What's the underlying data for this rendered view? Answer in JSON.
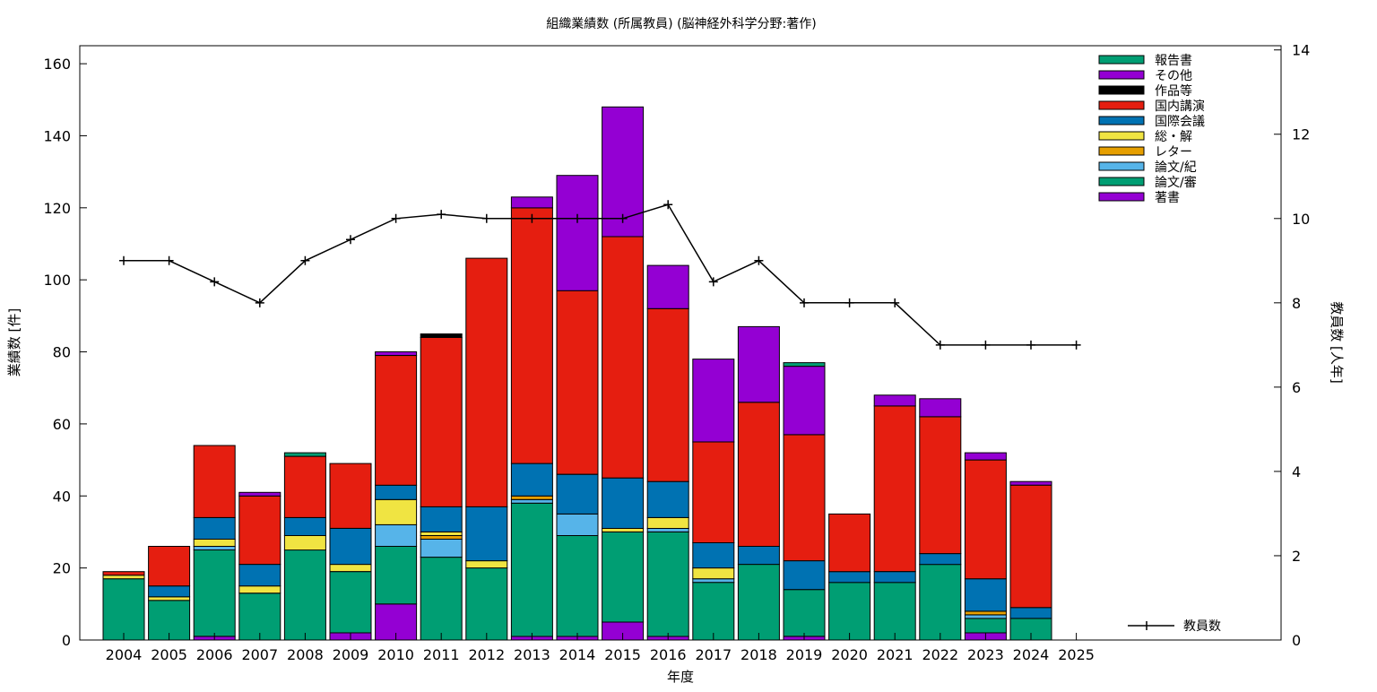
{
  "chart_data": {
    "type": "bar",
    "stacked": true,
    "title": "組織業績数 (所属教員) (脳神経外科学分野:著作)",
    "xlabel": "年度",
    "ylabel": "業績数 [件]",
    "y2label": "教員数 [人年]",
    "ylim": [
      0,
      165
    ],
    "y2lim": [
      0,
      14.1
    ],
    "yticks": [
      0,
      20,
      40,
      60,
      80,
      100,
      120,
      140,
      160
    ],
    "y2ticks": [
      0,
      2,
      4,
      6,
      8,
      10,
      12,
      14
    ],
    "grid": false,
    "legend_position": "top-right",
    "categories": [
      "2004",
      "2005",
      "2006",
      "2007",
      "2008",
      "2009",
      "2010",
      "2011",
      "2012",
      "2013",
      "2014",
      "2015",
      "2016",
      "2017",
      "2018",
      "2019",
      "2020",
      "2021",
      "2022",
      "2023",
      "2024",
      "2025"
    ],
    "series": [
      {
        "name": "著書",
        "color": "#9400d3",
        "values": [
          0,
          0,
          1,
          0,
          0,
          2,
          10,
          0,
          0,
          1,
          1,
          5,
          1,
          0,
          0,
          1,
          0,
          0,
          0,
          2,
          0,
          0
        ]
      },
      {
        "name": "論文/審",
        "color": "#009e73",
        "values": [
          17,
          11,
          24,
          13,
          25,
          17,
          16,
          23,
          20,
          37,
          28,
          25,
          29,
          16,
          21,
          13,
          16,
          16,
          21,
          4,
          6,
          0
        ]
      },
      {
        "name": "論文/紀",
        "color": "#56b4e9",
        "values": [
          0,
          0,
          1,
          0,
          0,
          0,
          6,
          5,
          0,
          1,
          6,
          0,
          1,
          1,
          0,
          0,
          0,
          0,
          0,
          1,
          0,
          0
        ]
      },
      {
        "name": "レター",
        "color": "#e69f00",
        "values": [
          0,
          0,
          0,
          0,
          0,
          0,
          0,
          1,
          0,
          1,
          0,
          0,
          0,
          0,
          0,
          0,
          0,
          0,
          0,
          1,
          0,
          0
        ]
      },
      {
        "name": "総・解",
        "color": "#f0e442",
        "values": [
          1,
          1,
          2,
          2,
          4,
          2,
          7,
          1,
          2,
          0,
          0,
          1,
          3,
          3,
          0,
          0,
          0,
          0,
          0,
          0,
          0,
          0
        ]
      },
      {
        "name": "国際会議",
        "color": "#0072b2",
        "values": [
          0,
          3,
          6,
          6,
          5,
          10,
          4,
          7,
          15,
          9,
          11,
          14,
          10,
          7,
          5,
          8,
          3,
          3,
          3,
          9,
          3,
          0
        ]
      },
      {
        "name": "国内講演",
        "color": "#e51e10",
        "values": [
          1,
          11,
          20,
          19,
          17,
          18,
          36,
          47,
          69,
          71,
          51,
          67,
          48,
          28,
          40,
          35,
          16,
          46,
          38,
          33,
          34,
          0
        ]
      },
      {
        "name": "作品等",
        "color": "#000000",
        "values": [
          0,
          0,
          0,
          0,
          0,
          0,
          0,
          1,
          0,
          0,
          0,
          0,
          0,
          0,
          0,
          0,
          0,
          0,
          0,
          0,
          0,
          0
        ]
      },
      {
        "name": "その他",
        "color": "#9400d3",
        "values": [
          0,
          0,
          0,
          1,
          0,
          0,
          1,
          0,
          0,
          3,
          32,
          36,
          12,
          23,
          21,
          19,
          0,
          3,
          5,
          2,
          1,
          0
        ]
      },
      {
        "name": "報告書",
        "color": "#009e73",
        "values": [
          0,
          0,
          0,
          0,
          1,
          0,
          0,
          0,
          0,
          0,
          0,
          0,
          0,
          0,
          0,
          1,
          0,
          0,
          0,
          0,
          0,
          0
        ]
      }
    ],
    "line_series": {
      "name": "教員数",
      "axis": "y2",
      "color": "#000000",
      "values": [
        9,
        9,
        8.5,
        8,
        9,
        9.5,
        10,
        10.1,
        10,
        10,
        10,
        10,
        10.33,
        8.5,
        9,
        8,
        8,
        8,
        7,
        7,
        7,
        7
      ]
    }
  }
}
